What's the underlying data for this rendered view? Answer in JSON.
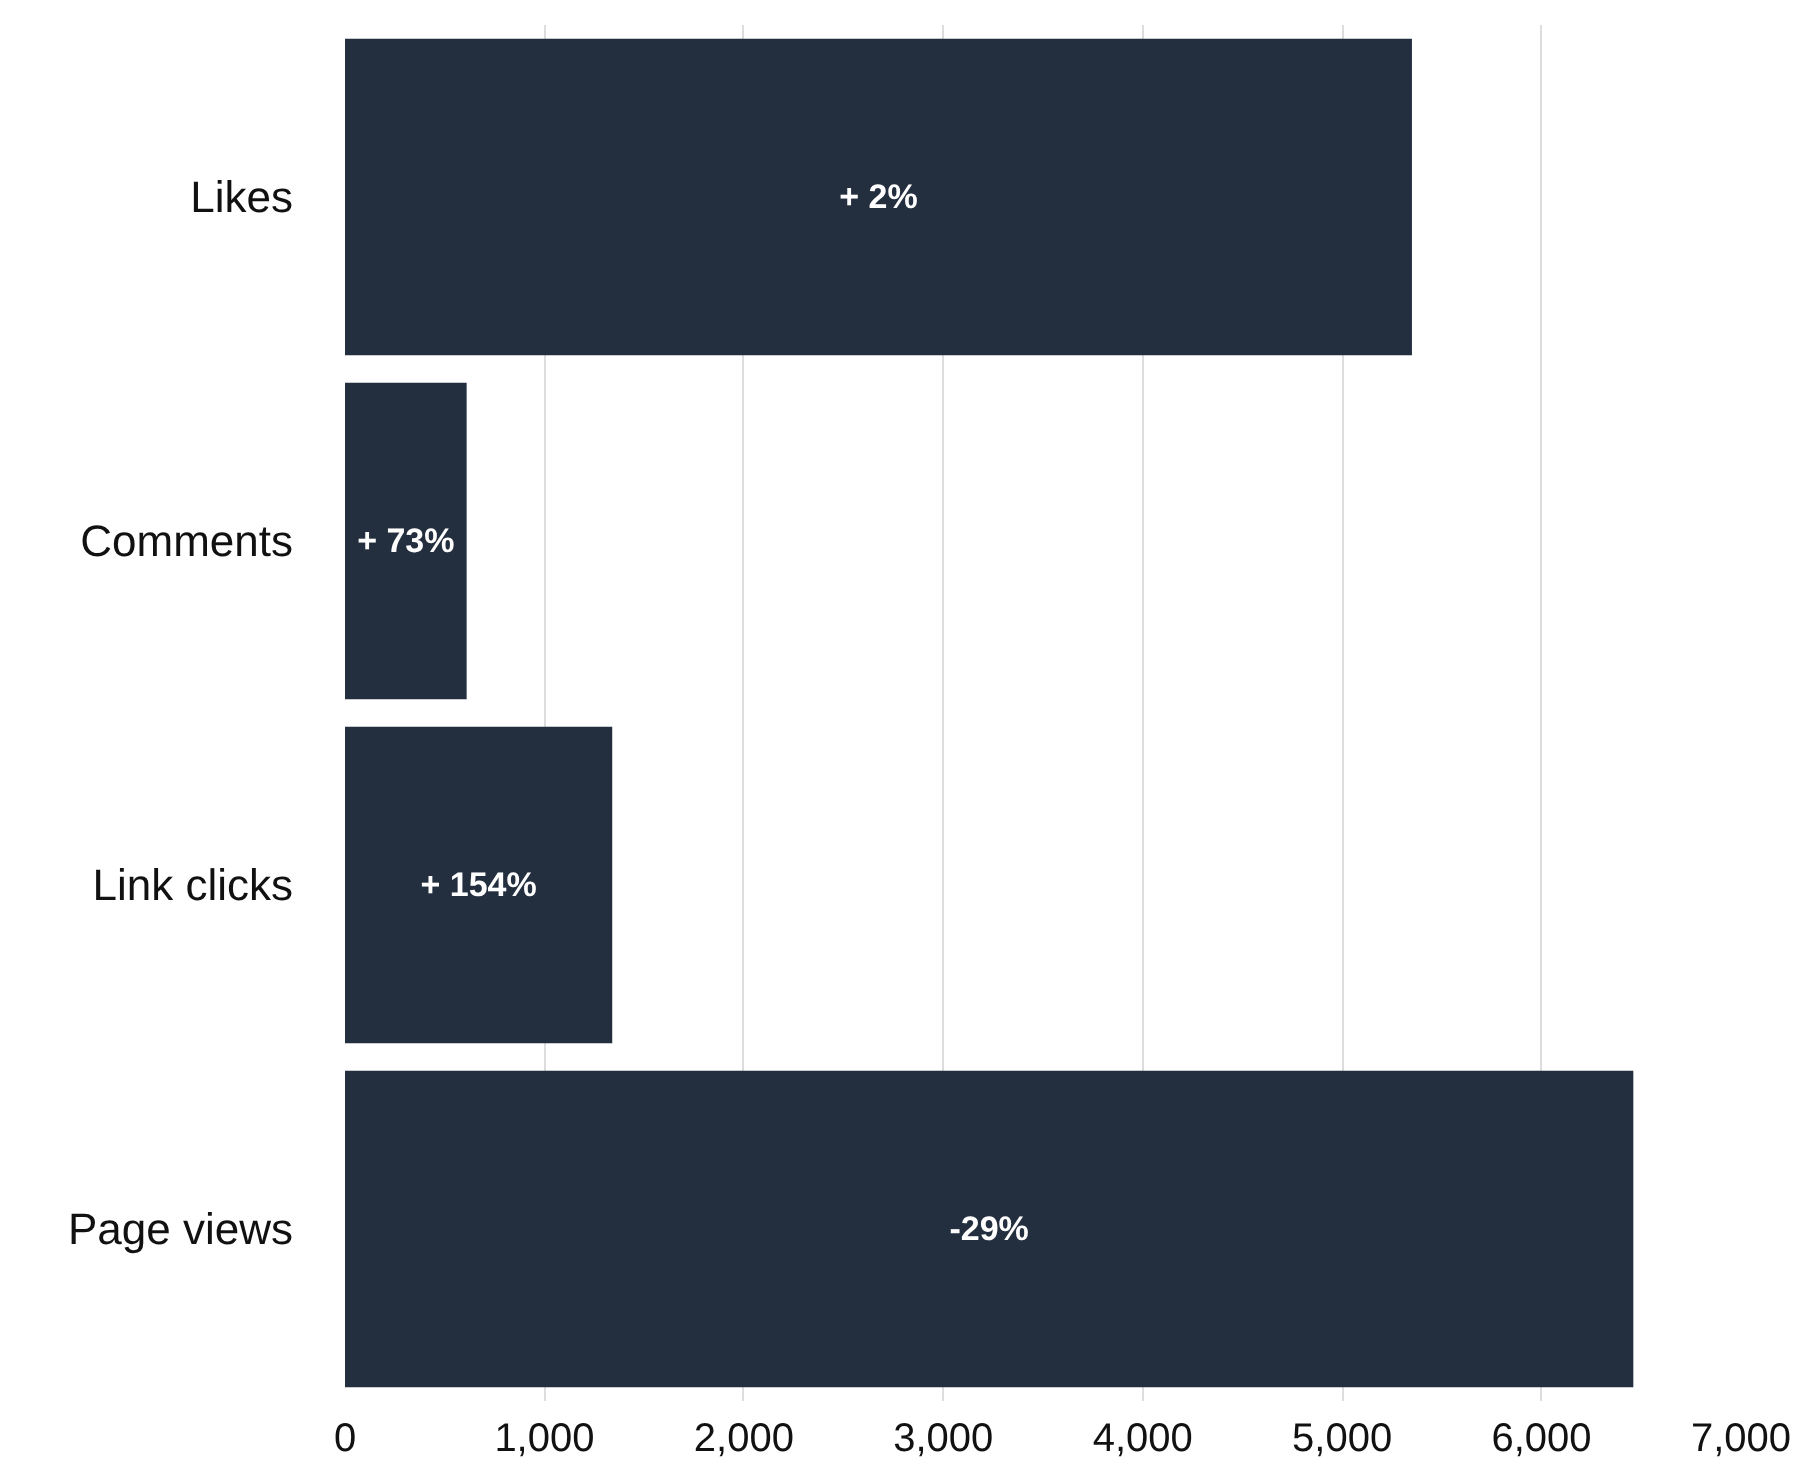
{
  "chart_data": {
    "type": "bar",
    "orientation": "horizontal",
    "categories": [
      "Likes",
      "Comments",
      "Link clicks",
      "Page views"
    ],
    "values": [
      5350,
      610,
      1340,
      6460
    ],
    "annotations": [
      "+ 2%",
      "+ 73%",
      "+ 154%",
      "-29%"
    ],
    "color": "#232e3f",
    "xlim": [
      0,
      7000
    ],
    "xticks": [
      0,
      {
        "value": 1000,
        "label": "1,000"
      },
      {
        "value": 2000,
        "label": "2,000"
      },
      {
        "value": 3000,
        "label": "3,000"
      },
      {
        "value": 4000,
        "label": "4,000"
      },
      {
        "value": 5000,
        "label": "5,000"
      },
      {
        "value": 6000,
        "label": "6,000"
      },
      {
        "value": 7000,
        "label": "7,000"
      }
    ],
    "grid": "x"
  }
}
